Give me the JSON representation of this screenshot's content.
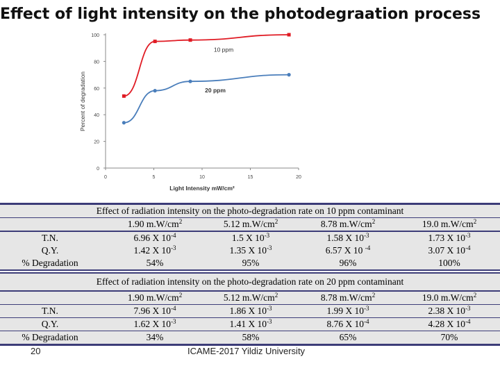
{
  "slide": {
    "title": "Effect of light intensity on the photodegraation process",
    "page_number": "20",
    "footer": "ICAME-2017 Yildiz University"
  },
  "chart_data": {
    "type": "line",
    "title": "",
    "xlabel": "Light Intensity mW/cm²",
    "ylabel": "Percent of degradation",
    "xlim": [
      0,
      20
    ],
    "ylim": [
      0,
      100
    ],
    "xticks": [
      0,
      5,
      10,
      15,
      20
    ],
    "yticks": [
      0,
      20,
      40,
      60,
      80,
      100
    ],
    "grid": false,
    "series": [
      {
        "name": "10 ppm",
        "color": "#e01b24",
        "marker": "square",
        "x": [
          1.9,
          5.12,
          8.78,
          19.0
        ],
        "y": [
          54,
          95,
          96,
          100
        ]
      },
      {
        "name": "20 ppm",
        "color": "#4a7ebb",
        "marker": "circle",
        "x": [
          1.9,
          5.12,
          8.78,
          19.0
        ],
        "y": [
          34,
          58,
          65,
          70
        ]
      }
    ]
  },
  "tables": [
    {
      "caption": "Effect of radiation intensity on the photo-degradation rate on 10 ppm contaminant",
      "headers": [
        {
          "value": "1.90 m.W/cm",
          "exp": "2"
        },
        {
          "value": "5.12 m.W/cm",
          "exp": "2"
        },
        {
          "value": "8.78  m.W/cm",
          "exp": "2"
        },
        {
          "value": "19.0 m.W/cm",
          "exp": "2"
        }
      ],
      "rows": [
        {
          "label": "T.N.",
          "cells": [
            {
              "value": "6.96 X 10",
              "exp": "-4"
            },
            {
              "value": "1.5 X 10",
              "exp": "-3"
            },
            {
              "value": "1.58 X 10",
              "exp": "-3"
            },
            {
              "value": "1.73 X 10",
              "exp": "-3"
            }
          ]
        },
        {
          "label": "Q.Y.",
          "cells": [
            {
              "value": "1.42 X 10",
              "exp": "-3"
            },
            {
              "value": "1.35 X 10",
              "exp": "-3"
            },
            {
              "value": "6.57 X 10 ",
              "exp": "-4"
            },
            {
              "value": "3.07 X 10",
              "exp": "-4"
            }
          ]
        },
        {
          "label": "% Degradation",
          "cells": [
            {
              "value": "54%",
              "exp": ""
            },
            {
              "value": "95%",
              "exp": ""
            },
            {
              "value": "96%",
              "exp": ""
            },
            {
              "value": "100%",
              "exp": ""
            }
          ]
        }
      ]
    },
    {
      "caption": "Effect of radiation intensity on the photo-degradation rate on 20 ppm contaminant",
      "headers": [
        {
          "value": "1.90 m.W/cm",
          "exp": "2"
        },
        {
          "value": "5.12 m.W/cm",
          "exp": "2"
        },
        {
          "value": "8.78  m.W/cm",
          "exp": "2"
        },
        {
          "value": "19.0 m.W/cm",
          "exp": "2"
        }
      ],
      "rows": [
        {
          "label": "T.N.",
          "cells": [
            {
              "value": "7.96 X 10",
              "exp": "-4"
            },
            {
              "value": "1.86 X 10",
              "exp": "-3"
            },
            {
              "value": "1.99 X 10",
              "exp": "-3"
            },
            {
              "value": "2.38 X 10",
              "exp": "-3"
            }
          ]
        },
        {
          "label": "Q.Y.",
          "cells": [
            {
              "value": "1.62 X 10",
              "exp": "-3"
            },
            {
              "value": "1.41 X 10",
              "exp": "-3"
            },
            {
              "value": "8.76 X 10",
              "exp": "-4"
            },
            {
              "value": "4.28 X 10",
              "exp": "-4"
            }
          ]
        },
        {
          "label": "% Degradation",
          "cells": [
            {
              "value": "34%",
              "exp": ""
            },
            {
              "value": "58%",
              "exp": ""
            },
            {
              "value": "65%",
              "exp": ""
            },
            {
              "value": "70%",
              "exp": ""
            }
          ]
        }
      ]
    }
  ]
}
